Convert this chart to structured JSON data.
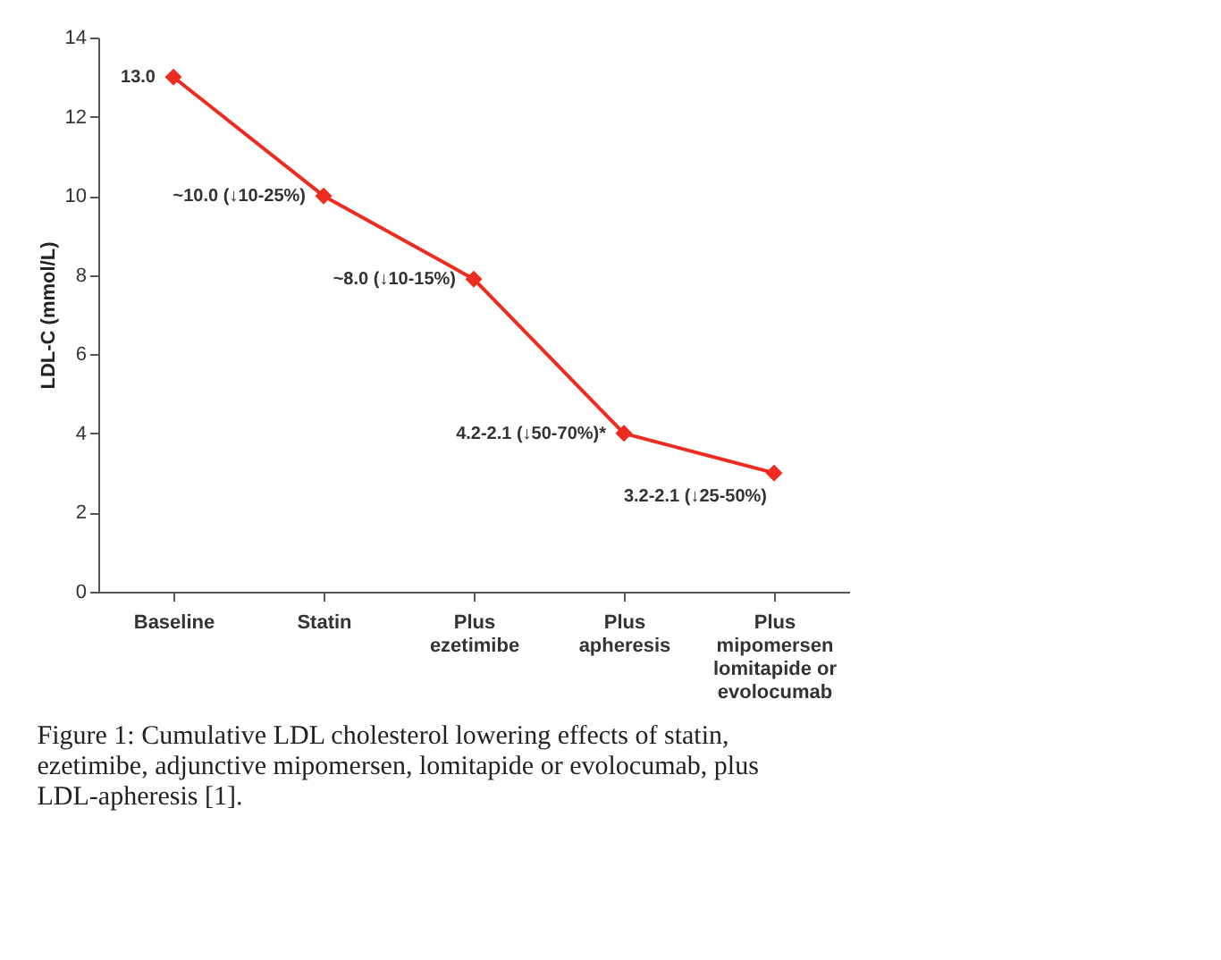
{
  "chart_data": {
    "type": "line",
    "categories": [
      "Baseline",
      "Statin",
      "Plus\nezetimibe",
      "Plus\napheresis",
      "Plus\nmipomersen\nlomitapide or\nevolocumab"
    ],
    "series": [
      {
        "color": "#ee2b1f",
        "values": [
          13.0,
          10.0,
          7.9,
          4.0,
          3.0
        ]
      }
    ],
    "ylabel": "LDL-C (mmol/L)",
    "ylim": [
      0,
      14
    ],
    "yticks": [
      0,
      2,
      4,
      6,
      8,
      10,
      12,
      14
    ],
    "grid": false,
    "marker": "diamond",
    "line_style": "solid",
    "annotations": [
      {
        "text": "13.0",
        "x": "Baseline",
        "y": 13.0
      },
      {
        "text": "~10.0 (↓10-25%)",
        "x": "Statin",
        "y": 10.0
      },
      {
        "text": "~8.0 (↓10-15%)",
        "x": "Plus\nezetimibe",
        "y": 7.9
      },
      {
        "text": "4.2-2.1 (↓50-70%)*",
        "x": "Plus\napheresis",
        "y": 4.0
      },
      {
        "text": "3.2-2.1 (↓25-50%)",
        "x": "Plus\nmipomersen\nlomitapide or\nevolocumab",
        "y": 3.0
      },
      "Figure 1: Cumulative LDL cholesterol lowering effects of statin, ezetimibe, adjunctive mipomersen, lomitapide or evolocumab, plus LDL-apheresis [1]."
    ]
  }
}
